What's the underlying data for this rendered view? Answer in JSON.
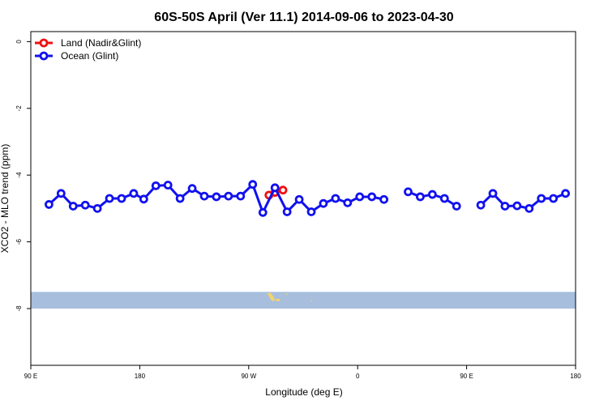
{
  "chart_data": {
    "type": "line",
    "title": "60S-50S April (Ver 11.1)   2014-09-06 to 2023-04-30",
    "xlabel": "Longitude (deg E)",
    "ylabel": "XCO2 - MLO trend (ppm)",
    "x_ticks": [
      {
        "value": 90,
        "label": "90 E"
      },
      {
        "value": 180,
        "label": "180"
      },
      {
        "value": 270,
        "label": "90 W"
      },
      {
        "value": 360,
        "label": "0"
      },
      {
        "value": 450,
        "label": "90 E"
      },
      {
        "value": 540,
        "label": "180"
      }
    ],
    "y_ticks": [
      {
        "value": 0,
        "label": "0"
      },
      {
        "value": -2,
        "label": "-2"
      },
      {
        "value": -4,
        "label": "-4"
      },
      {
        "value": -6,
        "label": "-6"
      },
      {
        "value": -8,
        "label": "-8"
      }
    ],
    "xlim": [
      90,
      540
    ],
    "ylim": [
      -9.7,
      0.3
    ],
    "legend_position": "top-left",
    "map_strip": {
      "y_top": -7.5,
      "y_bottom": -8.0,
      "ocean_color": "#a7bedd",
      "land_color": "#f3d36b"
    },
    "series": [
      {
        "name": "Land (Nadir&Glint)",
        "color": "#ee1111",
        "points": [
          [
            286.7,
            -4.6
          ],
          [
            291.7,
            -4.52
          ],
          [
            298.3,
            -4.45
          ]
        ]
      },
      {
        "name": "Ocean (Glint)",
        "color": "#1111ee",
        "points": [
          [
            105,
            -4.88
          ],
          [
            115,
            -4.55
          ],
          [
            125,
            -4.93
          ],
          [
            135,
            -4.9
          ],
          [
            145,
            -5.0
          ],
          [
            155,
            -4.7
          ],
          [
            165,
            -4.7
          ],
          [
            175,
            -4.55
          ],
          [
            183.3,
            -4.72
          ],
          [
            193.3,
            -4.32
          ],
          [
            203.3,
            -4.3
          ],
          [
            213.3,
            -4.7
          ],
          [
            223.3,
            -4.4
          ],
          [
            233.3,
            -4.63
          ],
          [
            243.3,
            -4.65
          ],
          [
            253.3,
            -4.63
          ],
          [
            263.3,
            -4.63
          ],
          [
            273.3,
            -4.28
          ],
          [
            281.7,
            -5.12
          ],
          [
            291.7,
            -4.38
          ],
          [
            301.7,
            -5.1
          ],
          [
            311.7,
            -4.73
          ],
          [
            321.7,
            -5.1
          ],
          [
            331.7,
            -4.85
          ],
          [
            341.7,
            -4.7
          ],
          [
            351.7,
            -4.83
          ],
          [
            361.7,
            -4.65
          ],
          [
            371.7,
            -4.65
          ],
          [
            381.7,
            -4.73
          ],
          null,
          [
            401.7,
            -4.5
          ],
          [
            411.7,
            -4.65
          ],
          [
            421.7,
            -4.58
          ],
          [
            431.7,
            -4.7
          ],
          [
            441.7,
            -4.93
          ],
          null,
          [
            461.7,
            -4.9
          ],
          [
            471.7,
            -4.55
          ],
          [
            481.7,
            -4.93
          ],
          [
            491.7,
            -4.92
          ],
          [
            501.7,
            -5.0
          ],
          [
            511.7,
            -4.7
          ],
          [
            521.7,
            -4.7
          ],
          [
            531.7,
            -4.55
          ]
        ]
      }
    ]
  }
}
